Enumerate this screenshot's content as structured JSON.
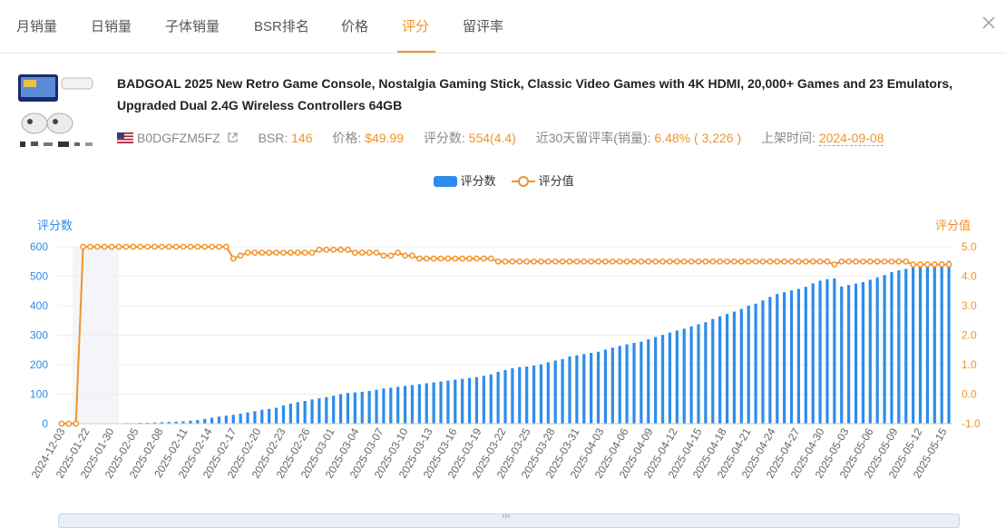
{
  "tabs": [
    "月销量",
    "日销量",
    "子体销量",
    "BSR排名",
    "价格",
    "评分",
    "留评率"
  ],
  "active_tab": "评分",
  "colors": {
    "accent": "#f0932b",
    "bar": "#2d8ceb"
  },
  "product": {
    "title": "BADGOAL 2025 New Retro Game Console, Nostalgia Gaming Stick, Classic Video Games with 4K HDMI, 20,000+ Games and 23 Emulators, Upgraded Dual 2.4G Wireless Controllers 64GB",
    "asin": "B0DGFZM5FZ",
    "bsr_label": "BSR:",
    "bsr_value": "146",
    "price_label": "价格:",
    "price_value": "$49.99",
    "reviews_label": "评分数:",
    "reviews_value": "554(4.4)",
    "rate_label": "近30天留评率(销量):",
    "rate_value": "6.48% ( 3,226 )",
    "listed_label": "上架时间:",
    "listed_value": "2024-09-08"
  },
  "legend": {
    "count_label": "评分数",
    "rating_label": "评分值"
  },
  "chart_data": {
    "type": "bar+line",
    "left_axis_title": "评分数",
    "right_axis_title": "评分值",
    "left_ticks": [
      "600",
      "500",
      "400",
      "300",
      "200",
      "100",
      "0"
    ],
    "right_ticks": [
      "5.0",
      "4.0",
      "3.0",
      "2.0",
      "1.0",
      "0.0",
      "-1.0"
    ],
    "ylim_left": [
      0,
      600
    ],
    "ylim_right": [
      -1,
      5
    ],
    "x_tick_labels": [
      "2024-12-03",
      "2025-01-22",
      "2025-01-30",
      "2025-02-05",
      "2025-02-08",
      "2025-02-11",
      "2025-02-14",
      "2025-02-17",
      "2025-02-20",
      "2025-02-23",
      "2025-02-26",
      "2025-03-01",
      "2025-03-04",
      "2025-03-07",
      "2025-03-10",
      "2025-03-13",
      "2025-03-16",
      "2025-03-19",
      "2025-03-22",
      "2025-03-25",
      "2025-03-28",
      "2025-03-31",
      "2025-04-03",
      "2025-04-06",
      "2025-04-09",
      "2025-04-12",
      "2025-04-15",
      "2025-04-18",
      "2025-04-21",
      "2025-04-24",
      "2025-04-27",
      "2025-04-30",
      "2025-05-03",
      "2025-05-06",
      "2025-05-09",
      "2025-05-12",
      "2025-05-15"
    ],
    "series": [
      {
        "name": "评分数",
        "type": "bar",
        "values": [
          0,
          0,
          0,
          0,
          1,
          1,
          1,
          1,
          1,
          2,
          2,
          3,
          3,
          4,
          5,
          6,
          7,
          8,
          10,
          12,
          16,
          20,
          24,
          27,
          30,
          34,
          38,
          42,
          47,
          50,
          54,
          62,
          68,
          73,
          77,
          82,
          86,
          90,
          95,
          100,
          104,
          106,
          108,
          111,
          115,
          119,
          122,
          125,
          128,
          131,
          134,
          137,
          140,
          143,
          146,
          149,
          152,
          155,
          158,
          162,
          167,
          176,
          182,
          188,
          192,
          194,
          197,
          201,
          208,
          214,
          219,
          228,
          232,
          236,
          240,
          244,
          251,
          258,
          264,
          269,
          274,
          278,
          286,
          294,
          301,
          309,
          316,
          322,
          330,
          337,
          344,
          355,
          364,
          372,
          380,
          389,
          400,
          407,
          418,
          430,
          440,
          446,
          452,
          457,
          464,
          476,
          485,
          490,
          493,
          465,
          470,
          475,
          480,
          488,
          496,
          504,
          514,
          520,
          525,
          530,
          535,
          540,
          548,
          550,
          552
        ]
      },
      {
        "name": "评分值",
        "type": "line",
        "values": [
          -1,
          -1,
          -1,
          5,
          5,
          5,
          5,
          5,
          5,
          5,
          5,
          5,
          5,
          5,
          5,
          5,
          5,
          5,
          5,
          5,
          5,
          5,
          5,
          5,
          4.6,
          4.7,
          4.8,
          4.8,
          4.8,
          4.8,
          4.8,
          4.8,
          4.8,
          4.8,
          4.8,
          4.8,
          4.9,
          4.9,
          4.9,
          4.9,
          4.9,
          4.8,
          4.8,
          4.8,
          4.8,
          4.7,
          4.7,
          4.8,
          4.7,
          4.7,
          4.6,
          4.6,
          4.6,
          4.6,
          4.6,
          4.6,
          4.6,
          4.6,
          4.6,
          4.6,
          4.6,
          4.5,
          4.5,
          4.5,
          4.5,
          4.5,
          4.5,
          4.5,
          4.5,
          4.5,
          4.5,
          4.5,
          4.5,
          4.5,
          4.5,
          4.5,
          4.5,
          4.5,
          4.5,
          4.5,
          4.5,
          4.5,
          4.5,
          4.5,
          4.5,
          4.5,
          4.5,
          4.5,
          4.5,
          4.5,
          4.5,
          4.5,
          4.5,
          4.5,
          4.5,
          4.5,
          4.5,
          4.5,
          4.5,
          4.5,
          4.5,
          4.5,
          4.5,
          4.5,
          4.5,
          4.5,
          4.5,
          4.5,
          4.4,
          4.5,
          4.5,
          4.5,
          4.5,
          4.5,
          4.5,
          4.5,
          4.5,
          4.5,
          4.5,
          4.4,
          4.4,
          4.4,
          4.4,
          4.4,
          4.4
        ]
      }
    ]
  }
}
